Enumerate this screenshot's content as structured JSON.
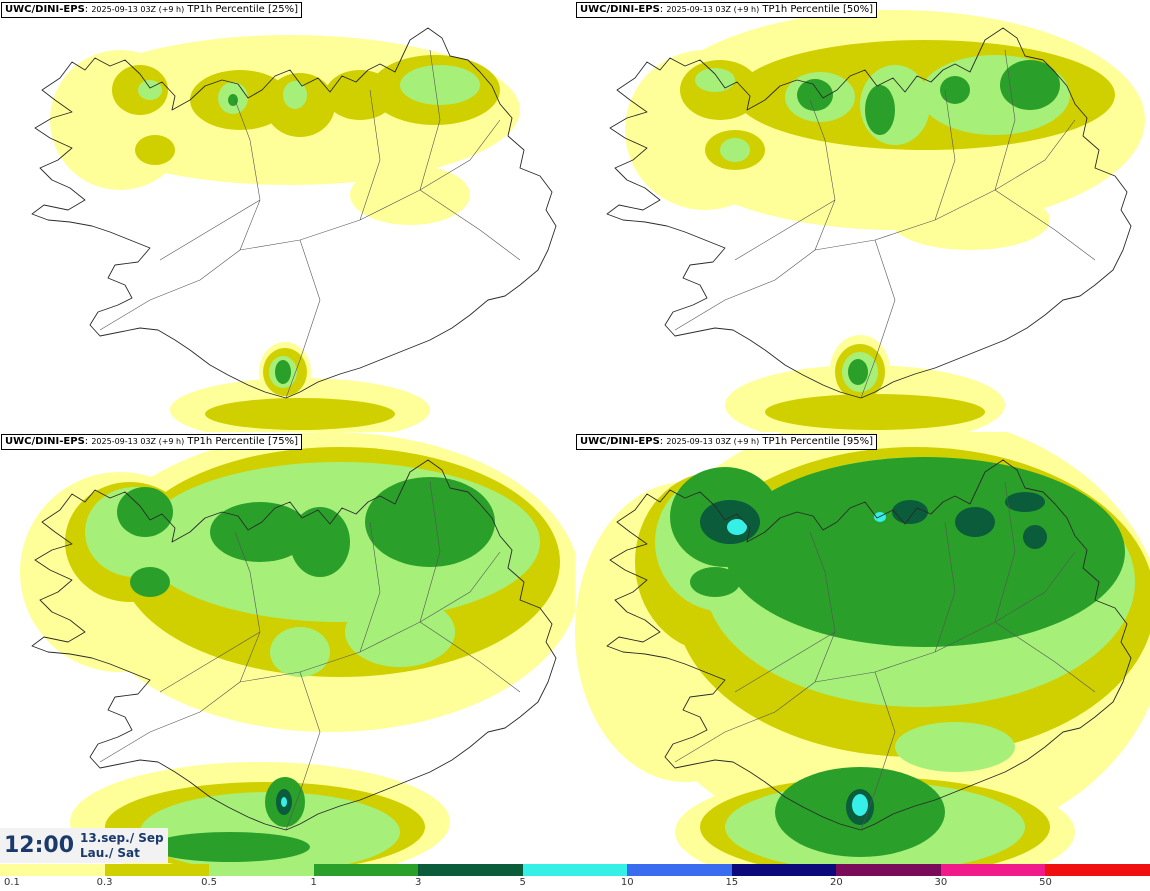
{
  "colors": {
    "c0": "#ffff99",
    "c1": "#d0d000",
    "c2": "#a6f07a",
    "c3": "#2aa02a",
    "c4": "#0a5c3a",
    "c5": "#36f0e8",
    "c6": "#3a6cf0",
    "c7": "#0a0a7a",
    "c8": "#7a0a5a",
    "c9": "#f01a8a",
    "c10": "#f01010",
    "coast": "#2a2a2a",
    "roads": "#555555"
  },
  "panels": [
    {
      "brand": "UWC/DINI-EPS",
      "run": "2025-09-13 03Z (+9 h)",
      "product": "TP1h Percentile [25%]",
      "level": 1
    },
    {
      "brand": "UWC/DINI-EPS",
      "run": "2025-09-13 03Z (+9 h)",
      "product": "TP1h Percentile [50%]",
      "level": 2
    },
    {
      "brand": "UWC/DINI-EPS",
      "run": "2025-09-13 03Z (+9 h)",
      "product": "TP1h Percentile [75%]",
      "level": 3
    },
    {
      "brand": "UWC/DINI-EPS",
      "run": "2025-09-13 03Z (+9 h)",
      "product": "TP1h Percentile [95%]",
      "level": 4
    }
  ],
  "valid_time": {
    "time": "12:00",
    "date_line1": "13.sep./ Sep",
    "date_line2": "Lau./ Sat"
  },
  "colorbar": {
    "ticks": [
      "0.1",
      "0.3",
      "0.5",
      "1",
      "3",
      "5",
      "10",
      "15",
      "20",
      "30",
      "50"
    ],
    "colors": [
      "#ffff99",
      "#d0d000",
      "#a6f07a",
      "#2aa02a",
      "#0a5c3a",
      "#36f0e8",
      "#3a6cf0",
      "#0a0a7a",
      "#7a0a5a",
      "#f01a8a",
      "#f01010"
    ]
  }
}
